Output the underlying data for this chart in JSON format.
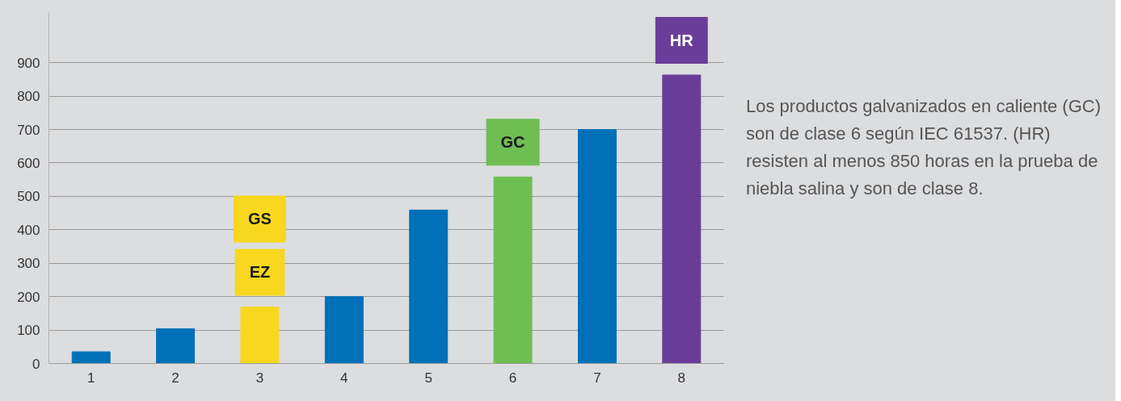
{
  "chart_data": {
    "type": "bar",
    "categories": [
      "1",
      "2",
      "3",
      "4",
      "5",
      "6",
      "7",
      "8"
    ],
    "values": [
      35,
      104,
      169,
      200,
      459,
      558,
      700,
      863
    ],
    "colors": [
      "#0070b8",
      "#0070b8",
      "#f7d81e",
      "#0070b8",
      "#0070b8",
      "#6fbe54",
      "#0070b8",
      "#6a3d9a"
    ],
    "ylim": [
      0,
      1050
    ],
    "yticks": [
      0,
      100,
      200,
      300,
      400,
      500,
      600,
      700,
      800,
      900
    ],
    "grid": "y",
    "annotations": [
      "Los productos galvanizados en caliente (GC) son de clase 6 según IEC 61537. (HR) resisten al menos 850 horas en la prueba de niebla salina y son de clase 8.",
      {
        "text": "EZ",
        "x": "3",
        "y": 169
      },
      "GS",
      {
        "text": "GC",
        "x": "6",
        "y": 558
      },
      {
        "text": "HR",
        "x": "8",
        "y": 863
      }
    ]
  }
}
